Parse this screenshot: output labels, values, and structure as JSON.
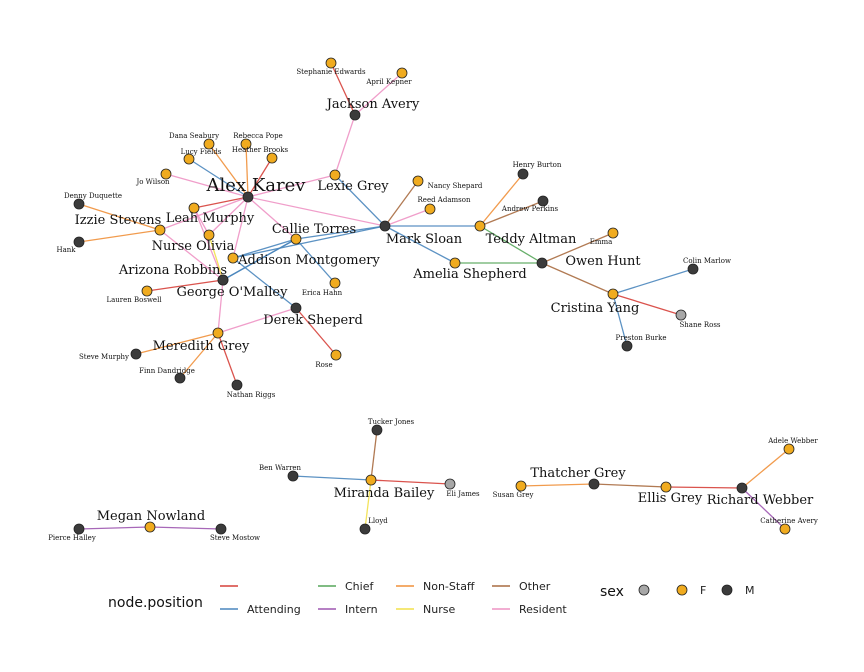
{
  "colors": {
    "edge": {
      "unlabeled": "#d6403a",
      "Attending": "#4a86bd",
      "Chief": "#57a65a",
      "Intern": "#9d57b0",
      "Non-Staff": "#f0903a",
      "Nurse": "#f2e04a",
      "Other": "#a86b40",
      "Resident": "#ee94c4"
    },
    "sex": {
      "F": "#f0ab1f",
      "M": "#3b3b3b",
      "unknown": "#a7a7a7"
    }
  },
  "legend": {
    "position_title": "node.position",
    "positions": [
      "",
      "Chief",
      "Non-Staff",
      "Other",
      "Attending",
      "Intern",
      "Nurse",
      "Resident"
    ],
    "sex_title": "sex",
    "sex_values": [
      "",
      "F",
      "M"
    ]
  },
  "nodes": [
    {
      "id": "Stephanie Edwards",
      "sex": "F",
      "size": "small"
    },
    {
      "id": "April Kepner",
      "sex": "F",
      "size": "small"
    },
    {
      "id": "Jackson Avery",
      "sex": "M",
      "size": "medium"
    },
    {
      "id": "Dana Seabury",
      "sex": "F",
      "size": "small"
    },
    {
      "id": "Rebecca Pope",
      "sex": "F",
      "size": "small"
    },
    {
      "id": "Lucy Fields",
      "sex": "F",
      "size": "small"
    },
    {
      "id": "Heather Brooks",
      "sex": "F",
      "size": "small"
    },
    {
      "id": "Jo Wilson",
      "sex": "F",
      "size": "small"
    },
    {
      "id": "Alex Karev",
      "sex": "M",
      "size": "large"
    },
    {
      "id": "Lexie Grey",
      "sex": "F",
      "size": "medium"
    },
    {
      "id": "Henry Burton",
      "sex": "M",
      "size": "small"
    },
    {
      "id": "Nancy Shepard",
      "sex": "F",
      "size": "small"
    },
    {
      "id": "Andrew Perkins",
      "sex": "M",
      "size": "small"
    },
    {
      "id": "Reed Adamson",
      "sex": "F",
      "size": "small"
    },
    {
      "id": "Denny Duquette",
      "sex": "M",
      "size": "small"
    },
    {
      "id": "Leah Murphy",
      "sex": "F",
      "size": "medium"
    },
    {
      "id": "Izzie Stevens",
      "sex": "F",
      "size": "medium"
    },
    {
      "id": "Callie Torres",
      "sex": "F",
      "size": "medium"
    },
    {
      "id": "Mark Sloan",
      "sex": "M",
      "size": "medium"
    },
    {
      "id": "Teddy Altman",
      "sex": "F",
      "size": "medium"
    },
    {
      "id": "Emma",
      "sex": "F",
      "size": "small"
    },
    {
      "id": "Nurse Olivia",
      "sex": "F",
      "size": "medium"
    },
    {
      "id": "Hank",
      "sex": "M",
      "size": "small"
    },
    {
      "id": "Addison Montgomery",
      "sex": "F",
      "size": "medium"
    },
    {
      "id": "Owen Hunt",
      "sex": "M",
      "size": "medium"
    },
    {
      "id": "Colin Marlow",
      "sex": "M",
      "size": "small"
    },
    {
      "id": "Arizona Robbins",
      "sex": "F",
      "size": "medium"
    },
    {
      "id": "Amelia Shepherd",
      "sex": "F",
      "size": "medium"
    },
    {
      "id": "George O'Malley",
      "sex": "M",
      "size": "medium"
    },
    {
      "id": "Lauren Boswell",
      "sex": "F",
      "size": "small"
    },
    {
      "id": "Erica Hahn",
      "sex": "F",
      "size": "small"
    },
    {
      "id": "Cristina Yang",
      "sex": "F",
      "size": "medium"
    },
    {
      "id": "Shane Ross",
      "sex": "unknown",
      "size": "small"
    },
    {
      "id": "Derek Sheperd",
      "sex": "M",
      "size": "medium"
    },
    {
      "id": "Meredith Grey",
      "sex": "F",
      "size": "medium"
    },
    {
      "id": "Preston Burke",
      "sex": "M",
      "size": "small"
    },
    {
      "id": "Steve Murphy",
      "sex": "M",
      "size": "small"
    },
    {
      "id": "Rose",
      "sex": "F",
      "size": "small"
    },
    {
      "id": "Finn Dandridge",
      "sex": "M",
      "size": "small"
    },
    {
      "id": "Nathan Riggs",
      "sex": "M",
      "size": "small"
    },
    {
      "id": "Tucker Jones",
      "sex": "M",
      "size": "small"
    },
    {
      "id": "Adele Webber",
      "sex": "F",
      "size": "small"
    },
    {
      "id": "Ben Warren",
      "sex": "M",
      "size": "small"
    },
    {
      "id": "Thatcher Grey",
      "sex": "M",
      "size": "medium"
    },
    {
      "id": "Miranda Bailey",
      "sex": "F",
      "size": "medium"
    },
    {
      "id": "Eli James",
      "sex": "unknown",
      "size": "small"
    },
    {
      "id": "Susan Grey",
      "sex": "F",
      "size": "small"
    },
    {
      "id": "Ellis Grey",
      "sex": "F",
      "size": "medium"
    },
    {
      "id": "Richard Webber",
      "sex": "M",
      "size": "medium"
    },
    {
      "id": "Catherine Avery",
      "sex": "F",
      "size": "small"
    },
    {
      "id": "Lloyd",
      "sex": "M",
      "size": "small"
    },
    {
      "id": "Megan Nowland",
      "sex": "F",
      "size": "medium"
    },
    {
      "id": "Pierce Halley",
      "sex": "M",
      "size": "small"
    },
    {
      "id": "Steve Mostow",
      "sex": "M",
      "size": "small"
    }
  ],
  "edges": [
    {
      "source": "Stephanie Edwards",
      "target": "Jackson Avery",
      "type": "unlabeled"
    },
    {
      "source": "April Kepner",
      "target": "Jackson Avery",
      "type": "Resident"
    },
    {
      "source": "Jackson Avery",
      "target": "Lexie Grey",
      "type": "Resident"
    },
    {
      "source": "Lexie Grey",
      "target": "Alex Karev",
      "type": "Resident"
    },
    {
      "source": "Lexie Grey",
      "target": "Mark Sloan",
      "type": "Attending"
    },
    {
      "source": "Alex Karev",
      "target": "Dana Seabury",
      "type": "Non-Staff"
    },
    {
      "source": "Alex Karev",
      "target": "Rebecca Pope",
      "type": "Non-Staff"
    },
    {
      "source": "Alex Karev",
      "target": "Lucy Fields",
      "type": "Attending"
    },
    {
      "source": "Alex Karev",
      "target": "Heather Brooks",
      "type": "unlabeled"
    },
    {
      "source": "Alex Karev",
      "target": "Jo Wilson",
      "type": "Resident"
    },
    {
      "source": "Alex Karev",
      "target": "Leah Murphy",
      "type": "unlabeled"
    },
    {
      "source": "Alex Karev",
      "target": "Izzie Stevens",
      "type": "Resident"
    },
    {
      "source": "Alex Karev",
      "target": "Nurse Olivia",
      "type": "Resident"
    },
    {
      "source": "Alex Karev",
      "target": "Callie Torres",
      "type": "Resident"
    },
    {
      "source": "Alex Karev",
      "target": "Addison Montgomery",
      "type": "Resident"
    },
    {
      "source": "Alex Karev",
      "target": "Mark Sloan",
      "type": "Resident"
    },
    {
      "source": "Leah Murphy",
      "target": "Nurse Olivia",
      "type": "Resident"
    },
    {
      "source": "Leah Murphy",
      "target": "Arizona Robbins",
      "type": "Resident"
    },
    {
      "source": "Izzie Stevens",
      "target": "Denny Duquette",
      "type": "Non-Staff"
    },
    {
      "source": "Izzie Stevens",
      "target": "Hank",
      "type": "Non-Staff"
    },
    {
      "source": "Izzie Stevens",
      "target": "George O'Malley",
      "type": "Resident"
    },
    {
      "source": "Nurse Olivia",
      "target": "George O'Malley",
      "type": "Nurse"
    },
    {
      "source": "George O'Malley",
      "target": "Callie Torres",
      "type": "Attending"
    },
    {
      "source": "Arizona Robbins",
      "target": "Lauren Boswell",
      "type": "unlabeled"
    },
    {
      "source": "Arizona Robbins",
      "target": "Callie Torres",
      "type": "Attending"
    },
    {
      "source": "Addison Montgomery",
      "target": "Callie Torres",
      "type": "Attending"
    },
    {
      "source": "Addison Montgomery",
      "target": "Mark Sloan",
      "type": "Attending"
    },
    {
      "source": "Addison Montgomery",
      "target": "Derek Sheperd",
      "type": "Attending"
    },
    {
      "source": "Callie Torres",
      "target": "Mark Sloan",
      "type": "Attending"
    },
    {
      "source": "Callie Torres",
      "target": "Erica Hahn",
      "type": "Attending"
    },
    {
      "source": "Mark Sloan",
      "target": "Nancy Shepard",
      "type": "Other"
    },
    {
      "source": "Mark Sloan",
      "target": "Reed Adamson",
      "type": "Resident"
    },
    {
      "source": "Mark Sloan",
      "target": "Teddy Altman",
      "type": "Attending"
    },
    {
      "source": "Mark Sloan",
      "target": "Amelia Shepherd",
      "type": "Attending"
    },
    {
      "source": "Teddy Altman",
      "target": "Henry Burton",
      "type": "Non-Staff"
    },
    {
      "source": "Teddy Altman",
      "target": "Andrew Perkins",
      "type": "Other"
    },
    {
      "source": "Teddy Altman",
      "target": "Owen Hunt",
      "type": "Chief"
    },
    {
      "source": "Amelia Shepherd",
      "target": "Owen Hunt",
      "type": "Chief"
    },
    {
      "source": "Owen Hunt",
      "target": "Emma",
      "type": "Other"
    },
    {
      "source": "Owen Hunt",
      "target": "Cristina Yang",
      "type": "Other"
    },
    {
      "source": "Cristina Yang",
      "target": "Colin Marlow",
      "type": "Attending"
    },
    {
      "source": "Cristina Yang",
      "target": "Shane Ross",
      "type": "unlabeled"
    },
    {
      "source": "Cristina Yang",
      "target": "Preston Burke",
      "type": "Attending"
    },
    {
      "source": "Derek Sheperd",
      "target": "Meredith Grey",
      "type": "Resident"
    },
    {
      "source": "Derek Sheperd",
      "target": "Rose",
      "type": "unlabeled"
    },
    {
      "source": "Meredith Grey",
      "target": "George O'Malley",
      "type": "Resident"
    },
    {
      "source": "Meredith Grey",
      "target": "Steve Murphy",
      "type": "Non-Staff"
    },
    {
      "source": "Meredith Grey",
      "target": "Finn Dandridge",
      "type": "Non-Staff"
    },
    {
      "source": "Meredith Grey",
      "target": "Nathan Riggs",
      "type": "unlabeled"
    },
    {
      "source": "Tucker Jones",
      "target": "Miranda Bailey",
      "type": "Other"
    },
    {
      "source": "Ben Warren",
      "target": "Miranda Bailey",
      "type": "Attending"
    },
    {
      "source": "Miranda Bailey",
      "target": "Eli James",
      "type": "unlabeled"
    },
    {
      "source": "Miranda Bailey",
      "target": "Lloyd",
      "type": "Nurse"
    },
    {
      "source": "Thatcher Grey",
      "target": "Susan Grey",
      "type": "Non-Staff"
    },
    {
      "source": "Thatcher Grey",
      "target": "Ellis Grey",
      "type": "Other"
    },
    {
      "source": "Ellis Grey",
      "target": "Richard Webber",
      "type": "unlabeled"
    },
    {
      "source": "Richard Webber",
      "target": "Adele Webber",
      "type": "Non-Staff"
    },
    {
      "source": "Richard Webber",
      "target": "Catherine Avery",
      "type": "Intern"
    },
    {
      "source": "Megan Nowland",
      "target": "Pierce Halley",
      "type": "Intern"
    },
    {
      "source": "Megan Nowland",
      "target": "Steve Mostow",
      "type": "Intern"
    }
  ]
}
